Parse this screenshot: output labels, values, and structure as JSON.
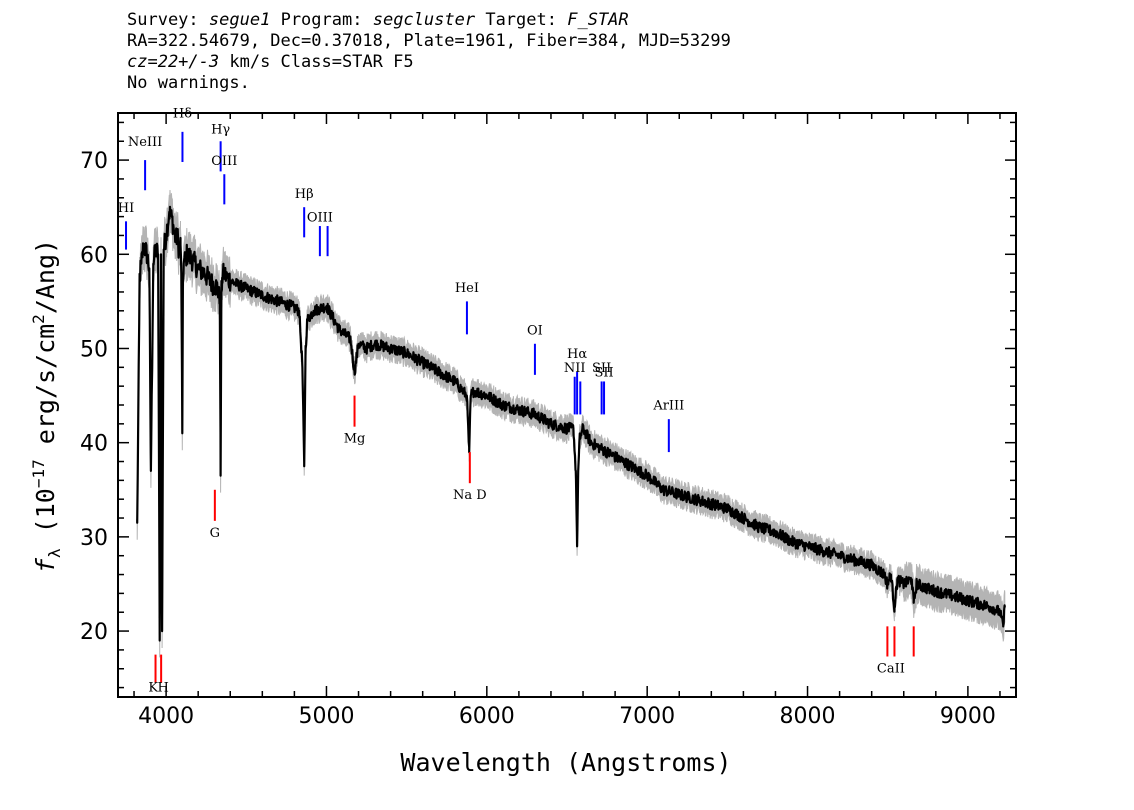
{
  "header": {
    "line1": {
      "survey_label": "Survey:",
      "survey": "segue1",
      "program_label": "Program:",
      "program": "segcluster",
      "target_label": "Target:",
      "target": "F_STAR"
    },
    "line2": "RA=322.54679, Dec=0.37018, Plate=1961, Fiber=384, MJD=53299",
    "line3": {
      "cz": "cz=22+/-3",
      "rest": " km/s Class=STAR F5"
    },
    "line4": "No warnings."
  },
  "chart_data": {
    "type": "line",
    "title": "",
    "xlabel": "Wavelength (Angstroms)",
    "ylabel": "f_λ (10^-17 erg/s/cm^2/Ang)",
    "ylabel_parts": {
      "f": "f",
      "sub": "λ",
      "open": " (10",
      "exp": "−17",
      "mid": " erg/s/cm",
      "exp2": "2",
      "close": "/Ang)"
    },
    "xlim": [
      3700,
      9300
    ],
    "ylim": [
      13,
      75
    ],
    "xticks": [
      4000,
      5000,
      6000,
      7000,
      8000,
      9000
    ],
    "yticks": [
      20,
      30,
      40,
      50,
      60,
      70
    ],
    "colors": {
      "spectrum": "#000000",
      "error": "#b4b4b4",
      "emission": "#0000ff",
      "absorption": "#ff0000"
    },
    "spectrum": {
      "wavelength": [
        3820,
        3835,
        3845,
        3860,
        3880,
        3895,
        3905,
        3920,
        3935,
        3950,
        3960,
        3968,
        3975,
        3985,
        4000,
        4020,
        4040,
        4060,
        4070,
        4080,
        4090,
        4095,
        4101,
        4105,
        4110,
        4130,
        4160,
        4200,
        4240,
        4280,
        4320,
        4335,
        4340,
        4345,
        4350,
        4360,
        4380,
        4420,
        4480,
        4550,
        4620,
        4700,
        4780,
        4830,
        4850,
        4861,
        4870,
        4880,
        4920,
        5000,
        5080,
        5150,
        5175,
        5200,
        5250,
        5300,
        5400,
        5500,
        5600,
        5700,
        5800,
        5850,
        5875,
        5890,
        5900,
        5920,
        6000,
        6100,
        6200,
        6300,
        6400,
        6500,
        6540,
        6555,
        6563,
        6570,
        6580,
        6600,
        6650,
        6700,
        6800,
        6900,
        7000,
        7100,
        7200,
        7300,
        7400,
        7500,
        7600,
        7700,
        7800,
        7900,
        8000,
        8100,
        8200,
        8300,
        8400,
        8480,
        8498,
        8520,
        8542,
        8560,
        8600,
        8650,
        8662,
        8680,
        8750,
        8850,
        8950,
        9050,
        9150,
        9200,
        9220,
        9230
      ],
      "flux": [
        31.5,
        57.5,
        59.0,
        61.0,
        60.0,
        58.5,
        37.0,
        59.0,
        60.5,
        60.0,
        19.0,
        60.0,
        20.0,
        60.5,
        62.0,
        64.5,
        63.5,
        61.5,
        62.0,
        60.5,
        61.0,
        58.0,
        41.0,
        57.0,
        59.0,
        60.0,
        59.5,
        58.5,
        58.0,
        57.0,
        56.5,
        55.0,
        36.5,
        56.0,
        57.5,
        58.0,
        57.5,
        57.0,
        56.5,
        56.0,
        55.5,
        55.0,
        54.5,
        54.0,
        48.0,
        37.5,
        50.0,
        53.0,
        54.0,
        54.5,
        52.0,
        51.0,
        47.5,
        50.5,
        50.0,
        50.5,
        50.0,
        49.5,
        48.5,
        47.5,
        46.5,
        45.5,
        45.0,
        39.0,
        45.0,
        45.5,
        45.0,
        44.0,
        43.5,
        43.0,
        42.0,
        41.5,
        41.5,
        37.0,
        29.0,
        37.0,
        40.5,
        41.5,
        40.0,
        39.5,
        38.5,
        37.5,
        36.5,
        35.0,
        34.5,
        34.0,
        33.5,
        33.0,
        32.0,
        31.0,
        30.5,
        29.5,
        29.0,
        28.5,
        28.0,
        27.5,
        27.0,
        26.0,
        25.0,
        26.0,
        22.5,
        25.5,
        25.0,
        25.5,
        23.0,
        25.0,
        24.5,
        24.0,
        23.5,
        23.0,
        22.5,
        22.0,
        20.5,
        22.5
      ]
    },
    "emission_lines": [
      {
        "label": "HI",
        "wavelength": 3750,
        "y_top": 63.5,
        "y_bottom": 60.5,
        "label_y": 64.5
      },
      {
        "label": "NeIII",
        "wavelength": 3869,
        "y_top": 70.0,
        "y_bottom": 66.8,
        "label_y": 71.5
      },
      {
        "label": "Hδ",
        "wavelength": 4102,
        "y_top": 73.0,
        "y_bottom": 69.8,
        "label_y": 74.5
      },
      {
        "label": "Hγ",
        "wavelength": 4340,
        "y_top": 72.0,
        "y_bottom": 68.8,
        "label_y": 72.8
      },
      {
        "label": "OIII",
        "wavelength": 4363,
        "y_top": 68.5,
        "y_bottom": 65.3,
        "label_y": 69.5
      },
      {
        "label": "Hβ",
        "wavelength": 4861,
        "y_top": 65.0,
        "y_bottom": 61.8,
        "label_y": 66.0
      },
      {
        "label": "OIII",
        "wavelength": 4959,
        "y_top": 63.0,
        "y_bottom": 59.8,
        "label_y": 63.5
      },
      {
        "label": "OIII",
        "wavelength": 5007,
        "y_top": 63.0,
        "y_bottom": 59.8,
        "label_y": ""
      },
      {
        "label": "HeI",
        "wavelength": 5876,
        "y_top": 55.0,
        "y_bottom": 51.5,
        "label_y": 56.0
      },
      {
        "label": "OI",
        "wavelength": 6300,
        "y_top": 50.5,
        "y_bottom": 47.2,
        "label_y": 51.5
      },
      {
        "label": "NII",
        "wavelength": 6548,
        "y_top": 47.0,
        "y_bottom": 43.0,
        "label_y": 47.5
      },
      {
        "label": "Hα",
        "wavelength": 6563,
        "y_top": 47.5,
        "y_bottom": 43.0,
        "label_y": 49.0
      },
      {
        "label": "NII",
        "wavelength": 6583,
        "y_top": 46.5,
        "y_bottom": 43.0,
        "label_y": ""
      },
      {
        "label": "SII",
        "wavelength": 6716,
        "y_top": 46.5,
        "y_bottom": 43.0,
        "label_y": 47.5
      },
      {
        "label": "SII",
        "wavelength": 6731,
        "y_top": 46.5,
        "y_bottom": 43.0,
        "label_y": 47.0
      },
      {
        "label": "ArIII",
        "wavelength": 7135,
        "y_top": 42.5,
        "y_bottom": 39.0,
        "label_y": 43.5
      }
    ],
    "absorption_lines": [
      {
        "label": "K",
        "wavelength": 3934,
        "y_top": 17.5,
        "y_bottom": 14.5
      },
      {
        "label": "H",
        "wavelength": 3969,
        "y_top": 17.5,
        "y_bottom": 14.5
      },
      {
        "label": "G",
        "wavelength": 4304,
        "y_top": 35.0,
        "y_bottom": 31.7
      },
      {
        "label": "Mg",
        "wavelength": 5175,
        "y_top": 45.0,
        "y_bottom": 41.7
      },
      {
        "label": "Na D",
        "wavelength": 5894,
        "y_top": 39.0,
        "y_bottom": 35.7
      },
      {
        "label": "CaII",
        "wavelength": 8498,
        "y_top": 20.5,
        "y_bottom": 17.3
      },
      {
        "label": "CaII",
        "wavelength": 8542,
        "y_top": 20.5,
        "y_bottom": 17.3
      },
      {
        "label": "CaII",
        "wavelength": 8662,
        "y_top": 20.5,
        "y_bottom": 17.3
      }
    ],
    "absorption_labels": [
      {
        "text": "K",
        "wavelength": 3920,
        "y": 13.6
      },
      {
        "text": "H",
        "wavelength": 3982,
        "y": 13.6
      },
      {
        "text": "G",
        "wavelength": 4304,
        "y": 30.0
      },
      {
        "text": "Mg",
        "wavelength": 5175,
        "y": 40.0
      },
      {
        "text": "Na D",
        "wavelength": 5894,
        "y": 34.0
      },
      {
        "text": "CaII",
        "wavelength": 8520,
        "y": 15.6
      }
    ]
  }
}
